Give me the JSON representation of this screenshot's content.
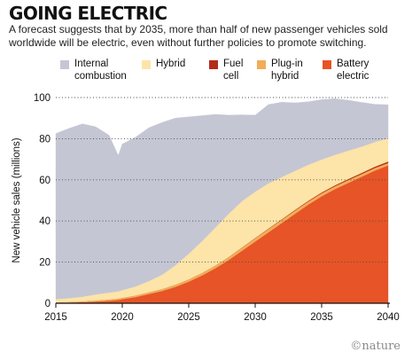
{
  "chart_data": {
    "type": "area",
    "stacked": true,
    "title": "GOING ELECTRIC",
    "subtitle": "A forecast suggests that by 2035, more than half of new passenger vehicles sold worldwide will be electric, even without further policies to promote switching.",
    "ylabel": "New vehicle sales (millions)",
    "xlabel": "",
    "xlim": [
      2015,
      2040
    ],
    "ylim": [
      0,
      100
    ],
    "x_ticks": [
      2015,
      2020,
      2025,
      2030,
      2035,
      2040
    ],
    "y_ticks": [
      0,
      20,
      40,
      60,
      80,
      100
    ],
    "grid": "dotted horizontal",
    "legend_position": "top",
    "x": [
      2015,
      2016,
      2017,
      2018,
      2019,
      2019.7,
      2020,
      2021,
      2022,
      2023,
      2024,
      2025,
      2026,
      2027,
      2028,
      2029,
      2030,
      2031,
      2032,
      2033,
      2034,
      2035,
      2036,
      2037,
      2038,
      2039,
      2040
    ],
    "series": [
      {
        "name": "Battery\nelectric",
        "color": "#e65427",
        "values": [
          0.2,
          0.3,
          0.5,
          0.8,
          1.2,
          1.6,
          2.0,
          3.0,
          4.5,
          6.0,
          8.0,
          10.5,
          13.5,
          17.0,
          21.0,
          25.5,
          30.0,
          34.5,
          39.0,
          43.5,
          48.0,
          52.0,
          55.5,
          58.5,
          61.5,
          64.5,
          67.0
        ]
      },
      {
        "name": "Plug-in\nhybrid",
        "color": "#f1ad58",
        "values": [
          0.2,
          0.3,
          0.4,
          0.5,
          0.6,
          0.6,
          0.6,
          0.7,
          0.8,
          0.9,
          1.0,
          1.1,
          1.2,
          1.3,
          1.4,
          1.5,
          1.6,
          1.6,
          1.6,
          1.6,
          1.5,
          1.5,
          1.4,
          1.4,
          1.3,
          1.3,
          1.2
        ]
      },
      {
        "name": "Fuel\ncell",
        "color": "#b52a1a",
        "values": [
          0,
          0,
          0,
          0,
          0,
          0,
          0,
          0,
          0,
          0,
          0,
          0,
          0,
          0,
          0.05,
          0.1,
          0.15,
          0.2,
          0.25,
          0.3,
          0.35,
          0.4,
          0.45,
          0.5,
          0.55,
          0.6,
          0.7
        ]
      },
      {
        "name": "Hybrid",
        "color": "#fde4a8",
        "values": [
          1.6,
          1.9,
          2.3,
          3.0,
          3.4,
          3.6,
          3.8,
          4.5,
          5.5,
          7.0,
          9.5,
          12.5,
          15.5,
          18.5,
          21.0,
          22.5,
          22.5,
          22.0,
          20.5,
          19.0,
          17.5,
          16.0,
          14.8,
          13.8,
          12.8,
          12.0,
          11.3
        ]
      },
      {
        "name": "Internal\ncombustion",
        "color": "#c4c6d3",
        "values": [
          80.5,
          82.5,
          84.0,
          81.5,
          76.5,
          66.0,
          71.0,
          72.5,
          74.5,
          74.0,
          71.5,
          66.5,
          61.0,
          55.0,
          48.0,
          42.0,
          37.2,
          38.3,
          36.4,
          33.0,
          30.6,
          29.1,
          27.3,
          24.5,
          21.5,
          18.3,
          16.3
        ]
      }
    ]
  },
  "credit": "©nature"
}
